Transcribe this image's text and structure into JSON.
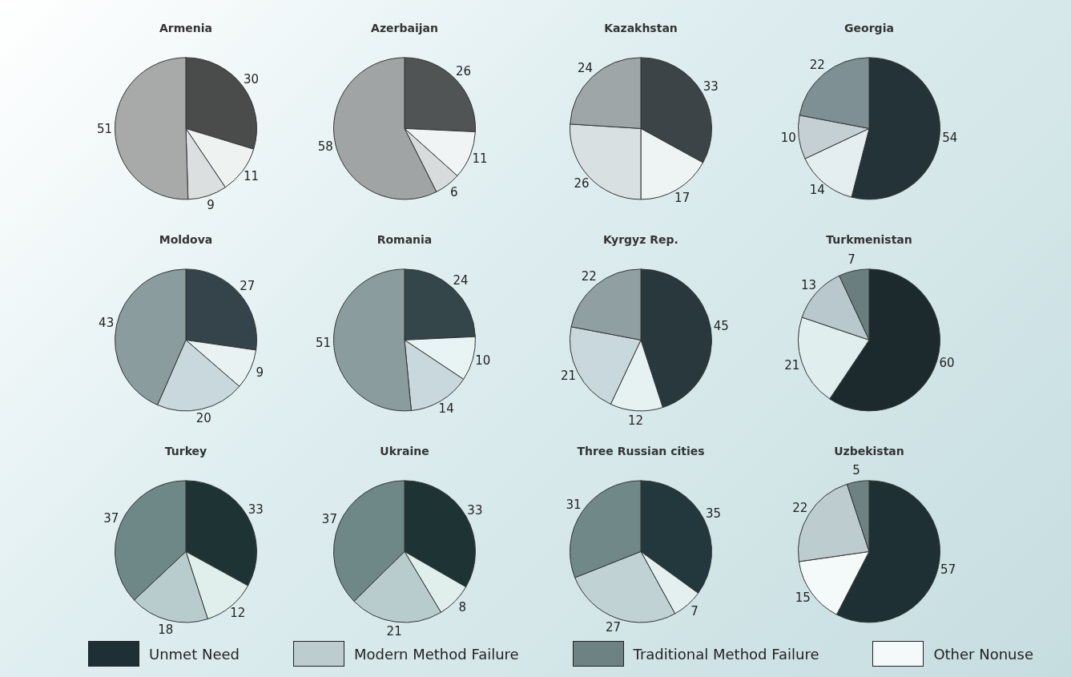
{
  "chart_data": [
    {
      "type": "pie",
      "title": "Armenia",
      "categories": [
        null,
        null,
        null,
        null
      ],
      "values": [
        30,
        11,
        9,
        51
      ],
      "colors": [
        "#4a4c4c",
        "#eef2f0",
        "#dcdfe0",
        "#a8a9a9"
      ],
      "data_labels": true
    },
    {
      "type": "pie",
      "title": "Azerbaijan",
      "categories": [
        null,
        null,
        null,
        null
      ],
      "values": [
        26,
        11,
        6,
        58
      ],
      "colors": [
        "#505454",
        "#f0f4f4",
        "#d8dcdc",
        "#a0a4a4"
      ],
      "data_labels": true
    },
    {
      "type": "pie",
      "title": "Kazakhstan",
      "categories": [
        null,
        null,
        null,
        null
      ],
      "values": [
        33,
        17,
        26,
        24
      ],
      "colors": [
        "#3c4448",
        "#eef4f4",
        "#d8e0e2",
        "#9ea6a8"
      ],
      "data_labels": true
    },
    {
      "type": "pie",
      "title": "Georgia",
      "categories": [
        null,
        null,
        null,
        null
      ],
      "values": [
        54,
        14,
        10,
        22
      ],
      "colors": [
        "#243338",
        "#e4eef0",
        "#c4d0d4",
        "#7e9094"
      ],
      "data_labels": true
    },
    {
      "type": "pie",
      "title": "Moldova",
      "categories": [
        null,
        null,
        null,
        null
      ],
      "values": [
        27,
        9,
        20,
        43
      ],
      "colors": [
        "#34444a",
        "#e8f2f2",
        "#c8d8dc",
        "#8a9c9e"
      ],
      "data_labels": true
    },
    {
      "type": "pie",
      "title": "Romania",
      "categories": [
        null,
        null,
        null,
        null
      ],
      "values": [
        24,
        10,
        14,
        51
      ],
      "colors": [
        "#34464a",
        "#e8f4f4",
        "#c8d8dc",
        "#8a9c9e"
      ],
      "data_labels": true
    },
    {
      "type": "pie",
      "title": "Kyrgyz Rep.",
      "categories": [
        null,
        null,
        null,
        null
      ],
      "values": [
        45,
        12,
        21,
        22
      ],
      "colors": [
        "#28383c",
        "#e6f2f2",
        "#c8d8dc",
        "#90a0a2"
      ],
      "data_labels": true
    },
    {
      "type": "pie",
      "title": "Turkmenistan",
      "categories": [
        null,
        null,
        null,
        null
      ],
      "values": [
        60,
        21,
        13,
        7
      ],
      "colors": [
        "#1c2a2e",
        "#e0eeee",
        "#b8c8cc",
        "#6a7e80"
      ],
      "data_labels": true
    },
    {
      "type": "pie",
      "title": "Turkey",
      "categories": [
        null,
        null,
        null,
        null
      ],
      "values": [
        33,
        12,
        18,
        37
      ],
      "colors": [
        "#1e3434",
        "#e0eeec",
        "#b8ccce",
        "#6e8888"
      ],
      "data_labels": true
    },
    {
      "type": "pie",
      "title": "Ukraine",
      "categories": [
        null,
        null,
        null,
        null
      ],
      "values": [
        33,
        8,
        21,
        37
      ],
      "colors": [
        "#1e3434",
        "#e0eeec",
        "#b8ccce",
        "#6e8888"
      ],
      "data_labels": true
    },
    {
      "type": "pie",
      "title": "Three Russian cities",
      "categories": [
        null,
        null,
        null,
        null
      ],
      "values": [
        35,
        7,
        27,
        31
      ],
      "colors": [
        "#23383c",
        "#e4f0f0",
        "#c0d2d4",
        "#708888"
      ],
      "data_labels": true
    },
    {
      "type": "pie",
      "title": "Uzbekistan",
      "categories": [
        "Unmet Need",
        "Other Nonuse",
        "Modern Method Failure",
        "Traditional Method Failure"
      ],
      "values": [
        57,
        15,
        22,
        5
      ],
      "colors": [
        "#1e3034",
        "#f4f9f9",
        "#bccccf",
        "#6e8284"
      ],
      "data_labels": true,
      "legend": "bottom"
    }
  ]
}
